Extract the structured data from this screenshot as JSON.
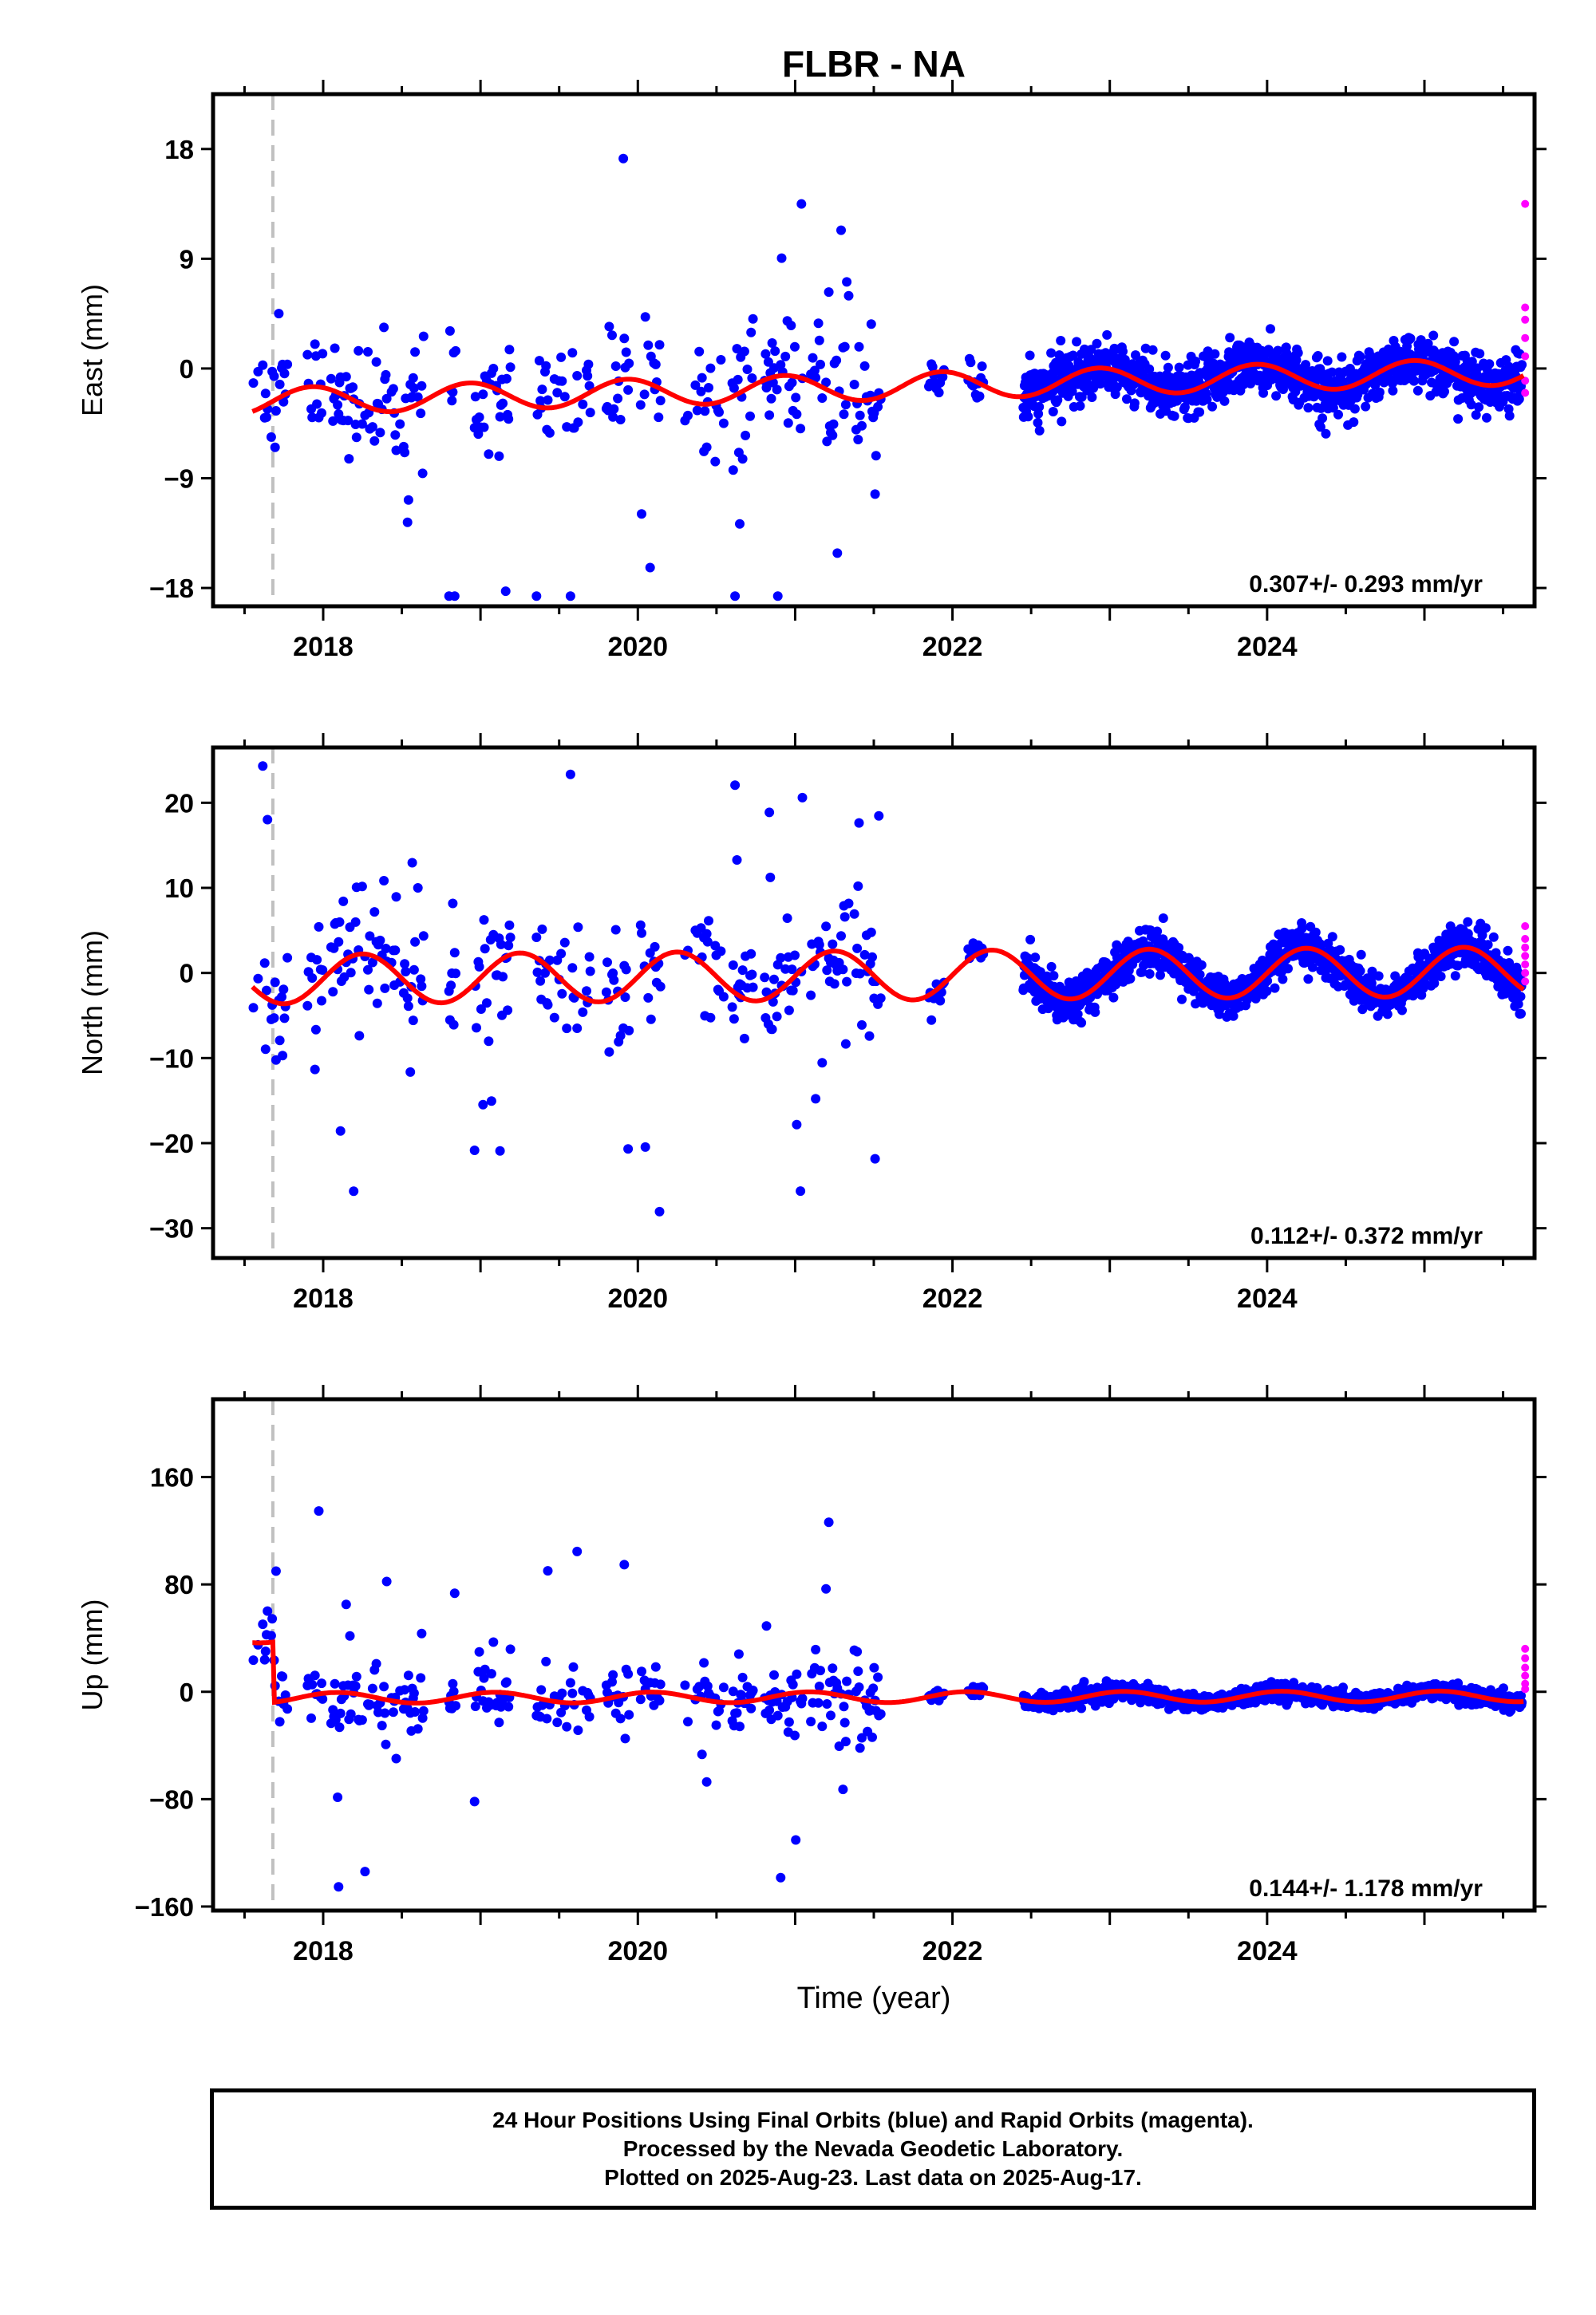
{
  "title": "FLBR - NA",
  "xlabel": "Time (year)",
  "footer": {
    "line1": "24 Hour Positions Using Final Orbits (blue) and Rapid Orbits (magenta).",
    "line2": "Processed by the Nevada Geodetic Laboratory.",
    "line3": "Plotted on 2025-Aug-23. Last data on 2025-Aug-17."
  },
  "colors": {
    "final_orbits": "#0000ff",
    "rapid_orbits": "#ff00ff",
    "model_fit": "#ff0000",
    "event_line": "#c0c0c0"
  },
  "chart_data": [
    {
      "type": "scatter",
      "component": "east",
      "ylabel": "East (mm)",
      "xlim": [
        2017.3,
        2025.7
      ],
      "ylim": [
        -19.5,
        22.5
      ],
      "yticks": [
        -18,
        -9,
        0,
        9,
        18
      ],
      "ytick_labels": [
        "−18",
        "−9",
        "0",
        "9",
        "18"
      ],
      "xticks": [
        2018,
        2020,
        2022,
        2024
      ],
      "rate": "0.307+/- 0.293 mm/yr",
      "event_x": 2017.68,
      "trend": [
        -1.5,
        0.307
      ],
      "seasonal": [
        {
          "period": 1.0,
          "amp": 1.1,
          "phase": 2.0
        }
      ],
      "step": null,
      "scatter_sd": [
        2.3,
        1.1
      ],
      "outlier_range": 21.0,
      "rapid_values": [
        13.5,
        5.0,
        4.0,
        2.5,
        1.0,
        -1.0,
        -2.0
      ],
      "series": [
        {
          "name": "Final Orbits",
          "color": "#0000ff"
        },
        {
          "name": "Rapid Orbits",
          "color": "#ff00ff"
        },
        {
          "name": "Model fit",
          "color": "#ff0000"
        }
      ]
    },
    {
      "type": "scatter",
      "component": "north",
      "ylabel": "North (mm)",
      "xlim": [
        2017.3,
        2025.7
      ],
      "ylim": [
        -33.5,
        26.5
      ],
      "yticks": [
        -30,
        -20,
        -10,
        0,
        10,
        20
      ],
      "ytick_labels": [
        "−30",
        "−20",
        "−10",
        "0",
        "10",
        "20"
      ],
      "xticks": [
        2018,
        2020,
        2022,
        2024
      ],
      "rate": "0.112+/- 0.372 mm/yr",
      "event_x": 2017.68,
      "trend": [
        -0.3,
        0.112
      ],
      "seasonal": [
        {
          "period": 1.0,
          "amp": 2.9,
          "phase": 0.0
        }
      ],
      "step": null,
      "scatter_sd": [
        3.2,
        1.2
      ],
      "outlier_range": 30.0,
      "rapid_values": [
        5.5,
        4.0,
        3.0,
        2.0,
        1.0,
        0.0,
        -1.0
      ],
      "series": [
        {
          "name": "Final Orbits",
          "color": "#0000ff"
        },
        {
          "name": "Rapid Orbits",
          "color": "#ff00ff"
        },
        {
          "name": "Model fit",
          "color": "#ff0000"
        }
      ]
    },
    {
      "type": "scatter",
      "component": "up",
      "ylabel": "Up (mm)",
      "xlim": [
        2017.3,
        2025.7
      ],
      "ylim": [
        -163,
        218
      ],
      "yticks": [
        -160,
        -80,
        0,
        80,
        160
      ],
      "ytick_labels": [
        "−160",
        "−80",
        "0",
        "80",
        "160"
      ],
      "xticks": [
        2018,
        2020,
        2022,
        2024
      ],
      "rate": "0.144+/- 1.178 mm/yr",
      "event_x": 2017.68,
      "trend": [
        -4.0,
        0.144
      ],
      "seasonal": [
        {
          "period": 1.0,
          "amp": 4.0,
          "phase": 1.0
        }
      ],
      "step": {
        "x": 2017.68,
        "before": 45.0
      },
      "scatter_sd": [
        12.0,
        3.0
      ],
      "outlier_range": 150.0,
      "rapid_values": [
        32,
        25,
        18,
        12,
        6,
        2
      ],
      "series": [
        {
          "name": "Final Orbits",
          "color": "#0000ff"
        },
        {
          "name": "Rapid Orbits",
          "color": "#ff00ff"
        },
        {
          "name": "Model fit",
          "color": "#ff0000"
        }
      ]
    }
  ]
}
